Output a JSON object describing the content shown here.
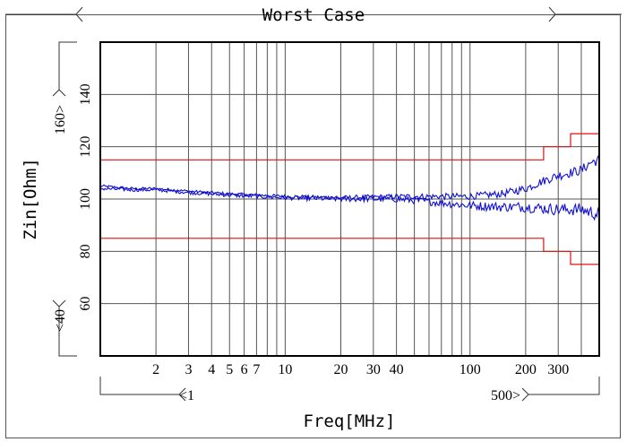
{
  "chart_data": {
    "type": "line",
    "title": "Worst Case",
    "xlabel": "Freq[MHz]",
    "ylabel": "Zin[Ohm]",
    "x_scale": "log",
    "xlim": [
      1,
      500
    ],
    "ylim": [
      40,
      160
    ],
    "x_ticks": [
      2,
      3,
      4,
      5,
      6,
      7,
      10,
      20,
      30,
      40,
      100,
      200,
      300
    ],
    "x_tick_labels": [
      "2",
      "3",
      "4",
      "5",
      "6",
      "7",
      "10",
      "20",
      "30",
      "40",
      "100",
      "200",
      "300"
    ],
    "x_range_markers": {
      "low": "<1",
      "high": "500>"
    },
    "y_ticks": [
      60,
      80,
      100,
      120,
      140
    ],
    "y_tick_labels": [
      "60",
      "80",
      "100",
      "120",
      "140"
    ],
    "y_range_markers": {
      "low": "<40",
      "high": "160>"
    },
    "grid": true,
    "colors": {
      "limits": "#e01010",
      "traces": "#1010d0"
    },
    "limits": [
      {
        "points": [
          [
            1,
            115
          ],
          [
            250,
            115
          ],
          [
            250,
            120
          ],
          [
            350,
            120
          ],
          [
            350,
            125
          ],
          [
            500,
            125
          ]
        ]
      },
      {
        "points": [
          [
            1,
            85
          ],
          [
            250,
            85
          ],
          [
            250,
            80
          ],
          [
            350,
            80
          ],
          [
            350,
            75
          ],
          [
            500,
            75
          ]
        ]
      }
    ],
    "series": [
      {
        "values": [
          [
            1,
            105
          ],
          [
            1.5,
            104
          ],
          [
            2,
            104
          ],
          [
            3,
            103
          ],
          [
            5,
            102
          ],
          [
            10,
            101
          ],
          [
            20,
            100.5
          ],
          [
            40,
            101
          ],
          [
            80,
            101
          ],
          [
            100,
            101
          ],
          [
            150,
            102
          ],
          [
            200,
            104
          ],
          [
            250,
            107
          ],
          [
            300,
            109
          ],
          [
            400,
            111
          ],
          [
            450,
            114
          ],
          [
            500,
            115
          ]
        ],
        "noise": 2.0
      },
      {
        "values": [
          [
            1,
            104
          ],
          [
            1.5,
            103.5
          ],
          [
            2,
            103.5
          ],
          [
            3,
            102.5
          ],
          [
            5,
            101.5
          ],
          [
            10,
            100.5
          ],
          [
            20,
            100
          ],
          [
            40,
            100
          ],
          [
            60,
            99
          ],
          [
            100,
            97.5
          ],
          [
            150,
            97
          ],
          [
            200,
            97
          ],
          [
            300,
            96
          ],
          [
            400,
            96
          ],
          [
            500,
            94
          ]
        ],
        "noise": 2.6
      }
    ]
  }
}
